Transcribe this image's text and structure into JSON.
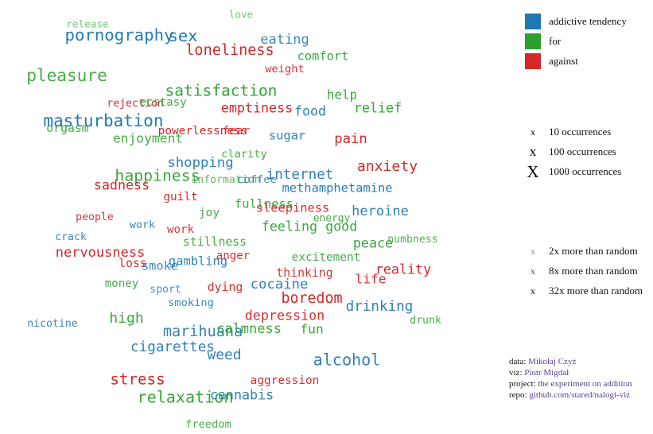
{
  "legend": {
    "categories": [
      {
        "label": "addictive tendency",
        "color": "#1f77b4"
      },
      {
        "label": "for",
        "color": "#2ca02c"
      },
      {
        "label": "against",
        "color": "#d62728"
      }
    ],
    "sizes": [
      {
        "mark": "x",
        "label": "10 occurrences"
      },
      {
        "mark": "x",
        "label": "100 occurrences"
      },
      {
        "mark": "X",
        "label": "1000 occurrences"
      }
    ],
    "opacity": [
      {
        "mark": "x",
        "label": "2x more than random"
      },
      {
        "mark": "x",
        "label": "8x more than random"
      },
      {
        "mark": "x",
        "label": "32x more than random"
      }
    ]
  },
  "credits": [
    {
      "prefix": "data: ",
      "link": "Mikołaj Czyż"
    },
    {
      "prefix": "viz: ",
      "link": "Piotr Migdał"
    },
    {
      "prefix": "project: ",
      "link": "the experiment on addition"
    },
    {
      "prefix": "repo: ",
      "link": "github.com/stared/nalogi-viz"
    }
  ],
  "chart_data": {
    "type": "word-cloud",
    "colors": {
      "addictive": "#1f77b4",
      "for": "#2ca02c",
      "against": "#d62728"
    },
    "words": [
      {
        "text": "love",
        "cat": "for",
        "occ": 12,
        "ratio": 4
      },
      {
        "text": "release",
        "cat": "for",
        "occ": 13,
        "ratio": 4
      },
      {
        "text": "pornography",
        "cat": "addictive",
        "occ": 160,
        "ratio": 14
      },
      {
        "text": "sex",
        "cat": "addictive",
        "occ": 150,
        "ratio": 16
      },
      {
        "text": "eating",
        "cat": "addictive",
        "occ": 50,
        "ratio": 10
      },
      {
        "text": "loneliness",
        "cat": "against",
        "occ": 80,
        "ratio": 16
      },
      {
        "text": "comfort",
        "cat": "for",
        "occ": 30,
        "ratio": 12
      },
      {
        "text": "weight",
        "cat": "against",
        "occ": 18,
        "ratio": 14
      },
      {
        "text": "pleasure",
        "cat": "for",
        "occ": 180,
        "ratio": 10
      },
      {
        "text": "satisfaction",
        "cat": "for",
        "occ": 110,
        "ratio": 14
      },
      {
        "text": "help",
        "cat": "for",
        "occ": 35,
        "ratio": 12
      },
      {
        "text": "rejection",
        "cat": "against",
        "occ": 15,
        "ratio": 14
      },
      {
        "text": "ecstasy",
        "cat": "for",
        "occ": 20,
        "ratio": 10
      },
      {
        "text": "emptiness",
        "cat": "against",
        "occ": 45,
        "ratio": 16
      },
      {
        "text": "food",
        "cat": "addictive",
        "occ": 45,
        "ratio": 12
      },
      {
        "text": "relief",
        "cat": "for",
        "occ": 45,
        "ratio": 14
      },
      {
        "text": "masturbation",
        "cat": "addictive",
        "occ": 170,
        "ratio": 16
      },
      {
        "text": "orgasm",
        "cat": "for",
        "occ": 25,
        "ratio": 10
      },
      {
        "text": "powerlessness",
        "cat": "against",
        "occ": 22,
        "ratio": 16
      },
      {
        "text": "fear",
        "cat": "against",
        "occ": 22,
        "ratio": 12
      },
      {
        "text": "sugar",
        "cat": "addictive",
        "occ": 30,
        "ratio": 12
      },
      {
        "text": "pain",
        "cat": "against",
        "occ": 55,
        "ratio": 16
      },
      {
        "text": "enjoyment",
        "cat": "for",
        "occ": 40,
        "ratio": 10
      },
      {
        "text": "clarity",
        "cat": "for",
        "occ": 18,
        "ratio": 10
      },
      {
        "text": "shopping",
        "cat": "addictive",
        "occ": 55,
        "ratio": 12
      },
      {
        "text": "anxiety",
        "cat": "against",
        "occ": 70,
        "ratio": 16
      },
      {
        "text": "happiness",
        "cat": "for",
        "occ": 120,
        "ratio": 12
      },
      {
        "text": "information",
        "cat": "for",
        "occ": 15,
        "ratio": 6
      },
      {
        "text": "coffee",
        "cat": "addictive",
        "occ": 18,
        "ratio": 8
      },
      {
        "text": "internet",
        "cat": "addictive",
        "occ": 60,
        "ratio": 12
      },
      {
        "text": "sadness",
        "cat": "against",
        "occ": 45,
        "ratio": 16
      },
      {
        "text": "methamphetamine",
        "cat": "addictive",
        "occ": 30,
        "ratio": 14
      },
      {
        "text": "guilt",
        "cat": "against",
        "occ": 22,
        "ratio": 14
      },
      {
        "text": "fullness",
        "cat": "for",
        "occ": 30,
        "ratio": 12
      },
      {
        "text": "sleepiness",
        "cat": "against",
        "occ": 30,
        "ratio": 14
      },
      {
        "text": "joy",
        "cat": "for",
        "occ": 22,
        "ratio": 10
      },
      {
        "text": "heroine",
        "cat": "addictive",
        "occ": 50,
        "ratio": 12
      },
      {
        "text": "people",
        "cat": "against",
        "occ": 15,
        "ratio": 12
      },
      {
        "text": "energy",
        "cat": "for",
        "occ": 14,
        "ratio": 10
      },
      {
        "text": "work",
        "cat": "addictive",
        "occ": 16,
        "ratio": 10
      },
      {
        "text": "feeling good",
        "cat": "for",
        "occ": 45,
        "ratio": 12
      },
      {
        "text": "work",
        "cat": "against",
        "occ": 20,
        "ratio": 12
      },
      {
        "text": "crack",
        "cat": "addictive",
        "occ": 15,
        "ratio": 10
      },
      {
        "text": "stillness",
        "cat": "for",
        "occ": 25,
        "ratio": 10
      },
      {
        "text": "peace",
        "cat": "for",
        "occ": 45,
        "ratio": 12
      },
      {
        "text": "numbness",
        "cat": "for",
        "occ": 15,
        "ratio": 8
      },
      {
        "text": "nervousness",
        "cat": "against",
        "occ": 50,
        "ratio": 16
      },
      {
        "text": "anger",
        "cat": "against",
        "occ": 20,
        "ratio": 14
      },
      {
        "text": "gambling",
        "cat": "addictive",
        "occ": 30,
        "ratio": 12
      },
      {
        "text": "excitement",
        "cat": "for",
        "occ": 22,
        "ratio": 10
      },
      {
        "text": "loss",
        "cat": "against",
        "occ": 25,
        "ratio": 14
      },
      {
        "text": "smoke",
        "cat": "addictive",
        "occ": 30,
        "ratio": 10
      },
      {
        "text": "reality",
        "cat": "against",
        "occ": 45,
        "ratio": 16
      },
      {
        "text": "thinking",
        "cat": "against",
        "occ": 25,
        "ratio": 12
      },
      {
        "text": "life",
        "cat": "against",
        "occ": 40,
        "ratio": 14
      },
      {
        "text": "money",
        "cat": "for",
        "occ": 20,
        "ratio": 10
      },
      {
        "text": "sport",
        "cat": "addictive",
        "occ": 15,
        "ratio": 8
      },
      {
        "text": "dying",
        "cat": "against",
        "occ": 25,
        "ratio": 14
      },
      {
        "text": "cocaine",
        "cat": "addictive",
        "occ": 55,
        "ratio": 12
      },
      {
        "text": "boredom",
        "cat": "against",
        "occ": 75,
        "ratio": 16
      },
      {
        "text": "smoking",
        "cat": "addictive",
        "occ": 18,
        "ratio": 10
      },
      {
        "text": "drinking",
        "cat": "addictive",
        "occ": 60,
        "ratio": 12
      },
      {
        "text": "nicotine",
        "cat": "addictive",
        "occ": 15,
        "ratio": 10
      },
      {
        "text": "high",
        "cat": "for",
        "occ": 70,
        "ratio": 12
      },
      {
        "text": "depression",
        "cat": "against",
        "occ": 45,
        "ratio": 14
      },
      {
        "text": "drunk",
        "cat": "for",
        "occ": 15,
        "ratio": 10
      },
      {
        "text": "marihuana",
        "cat": "addictive",
        "occ": 80,
        "ratio": 12
      },
      {
        "text": "calmness",
        "cat": "for",
        "occ": 50,
        "ratio": 12
      },
      {
        "text": "fun",
        "cat": "for",
        "occ": 40,
        "ratio": 12
      },
      {
        "text": "cigarettes",
        "cat": "addictive",
        "occ": 60,
        "ratio": 12
      },
      {
        "text": "weed",
        "cat": "addictive",
        "occ": 65,
        "ratio": 12
      },
      {
        "text": "alcohol",
        "cat": "addictive",
        "occ": 130,
        "ratio": 12
      },
      {
        "text": "stress",
        "cat": "against",
        "occ": 100,
        "ratio": 16
      },
      {
        "text": "aggression",
        "cat": "against",
        "occ": 22,
        "ratio": 14
      },
      {
        "text": "relaxation",
        "cat": "for",
        "occ": 130,
        "ratio": 12
      },
      {
        "text": "cannabis",
        "cat": "addictive",
        "occ": 45,
        "ratio": 12
      },
      {
        "text": "freedom",
        "cat": "for",
        "occ": 18,
        "ratio": 10
      }
    ]
  }
}
